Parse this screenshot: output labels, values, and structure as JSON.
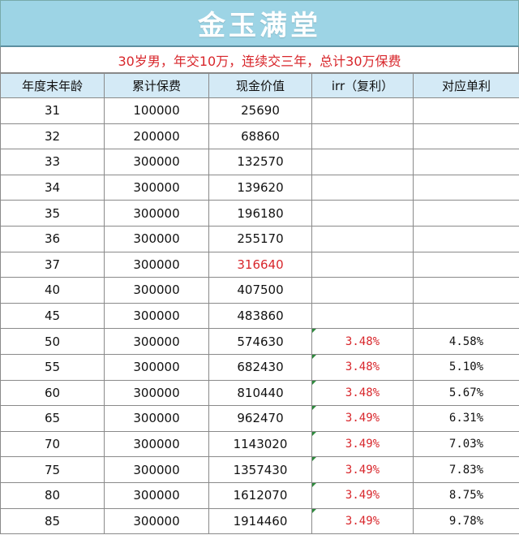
{
  "title": "金玉满堂",
  "subtitle": "30岁男，年交10万，连续交三年，总计30万保费",
  "columns": [
    "年度末年龄",
    "累计保费",
    "现金价值",
    "irr（复利）",
    "对应单利"
  ],
  "rows": [
    {
      "age": "31",
      "premium": "100000",
      "cash": "25690",
      "irr": "",
      "simple": ""
    },
    {
      "age": "32",
      "premium": "200000",
      "cash": "68860",
      "irr": "",
      "simple": ""
    },
    {
      "age": "33",
      "premium": "300000",
      "cash": "132570",
      "irr": "",
      "simple": ""
    },
    {
      "age": "34",
      "premium": "300000",
      "cash": "139620",
      "irr": "",
      "simple": ""
    },
    {
      "age": "35",
      "premium": "300000",
      "cash": "196180",
      "irr": "",
      "simple": ""
    },
    {
      "age": "36",
      "premium": "300000",
      "cash": "255170",
      "irr": "",
      "simple": ""
    },
    {
      "age": "37",
      "premium": "300000",
      "cash": "316640",
      "irr": "",
      "simple": "",
      "cash_highlight": true
    },
    {
      "age": "40",
      "premium": "300000",
      "cash": "407500",
      "irr": "",
      "simple": ""
    },
    {
      "age": "45",
      "premium": "300000",
      "cash": "483860",
      "irr": "",
      "simple": ""
    },
    {
      "age": "50",
      "premium": "300000",
      "cash": "574630",
      "irr": "3.48%",
      "simple": "4.58%"
    },
    {
      "age": "55",
      "premium": "300000",
      "cash": "682430",
      "irr": "3.48%",
      "simple": "5.10%"
    },
    {
      "age": "60",
      "premium": "300000",
      "cash": "810440",
      "irr": "3.48%",
      "simple": "5.67%"
    },
    {
      "age": "65",
      "premium": "300000",
      "cash": "962470",
      "irr": "3.49%",
      "simple": "6.31%"
    },
    {
      "age": "70",
      "premium": "300000",
      "cash": "1143020",
      "irr": "3.49%",
      "simple": "7.03%"
    },
    {
      "age": "75",
      "premium": "300000",
      "cash": "1357430",
      "irr": "3.49%",
      "simple": "7.83%"
    },
    {
      "age": "80",
      "premium": "300000",
      "cash": "1612070",
      "irr": "3.49%",
      "simple": "8.75%"
    },
    {
      "age": "85",
      "premium": "300000",
      "cash": "1914460",
      "irr": "3.49%",
      "simple": "9.78%"
    }
  ],
  "colors": {
    "title_bg": "#9dd4e5",
    "header_bg": "#d4eaf6",
    "highlight_red": "#d8262b"
  }
}
